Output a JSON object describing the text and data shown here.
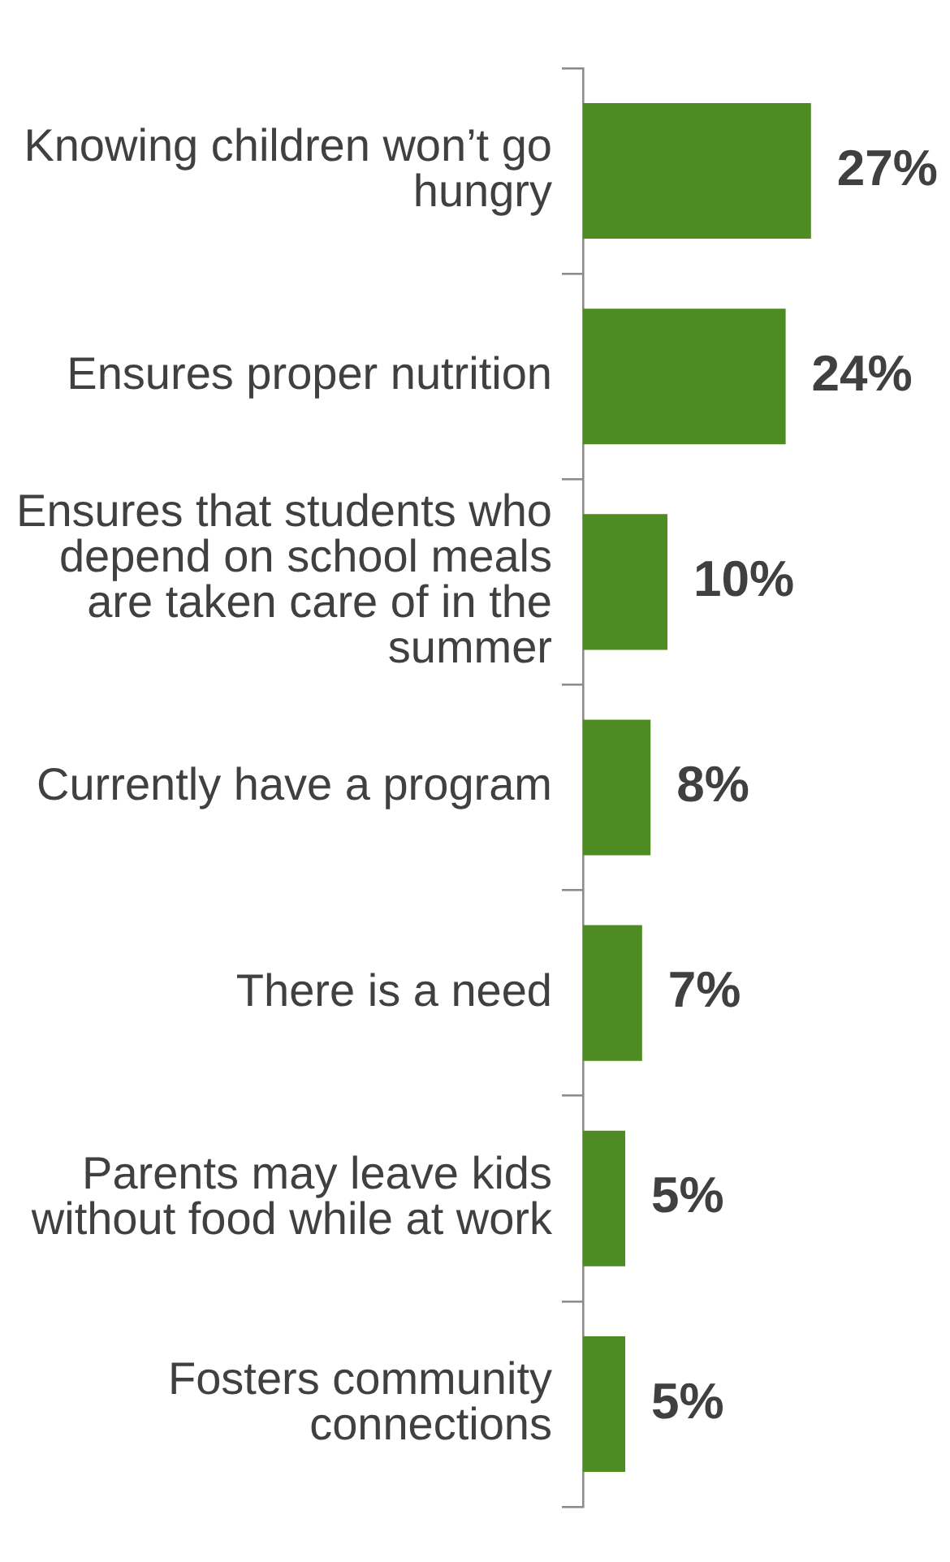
{
  "chart_data": {
    "type": "bar",
    "orientation": "horizontal",
    "categories": [
      "Knowing children won’t go hungry",
      "Ensures proper nutrition",
      "Ensures that students who depend on school meals are taken care of in the summer",
      "Currently have a program",
      "There is a need",
      "Parents may leave kids without food while at work",
      "Fosters community connections"
    ],
    "values": [
      27,
      24,
      10,
      8,
      7,
      5,
      5
    ],
    "value_labels": [
      "27%",
      "24%",
      "10%",
      "8%",
      "7%",
      "5%",
      "5%"
    ],
    "color": "#4e8b22",
    "tick_labels": "y",
    "grid": false,
    "legend": false
  }
}
